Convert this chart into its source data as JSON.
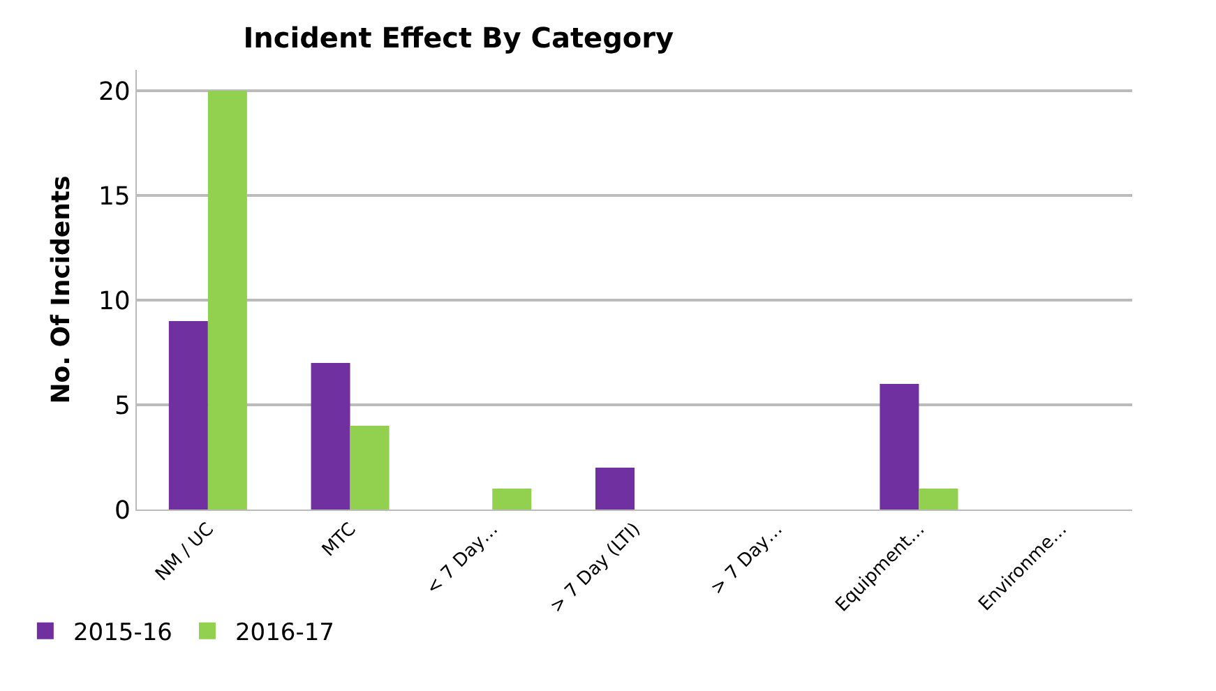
{
  "chart_data": {
    "type": "bar",
    "title": "Incident Effect By Category",
    "ylabel": "No. Of Incidents",
    "categories": [
      "NM / UC",
      "MTC",
      "< 7 Day…",
      "> 7 Day (LTI)",
      "> 7 Day…",
      "Equipment…",
      "Environme…"
    ],
    "series": [
      {
        "name": "2015-16",
        "color": "#7030a0",
        "values": [
          9,
          7,
          0,
          2,
          0,
          6,
          0
        ]
      },
      {
        "name": "2016-17",
        "color": "#92d050",
        "values": [
          20,
          4,
          1,
          null,
          null,
          1,
          0
        ]
      }
    ],
    "ylim": [
      0,
      21
    ],
    "yticks": [
      0,
      5,
      10,
      15,
      20
    ],
    "grid": "y",
    "legend": "bottom left"
  }
}
